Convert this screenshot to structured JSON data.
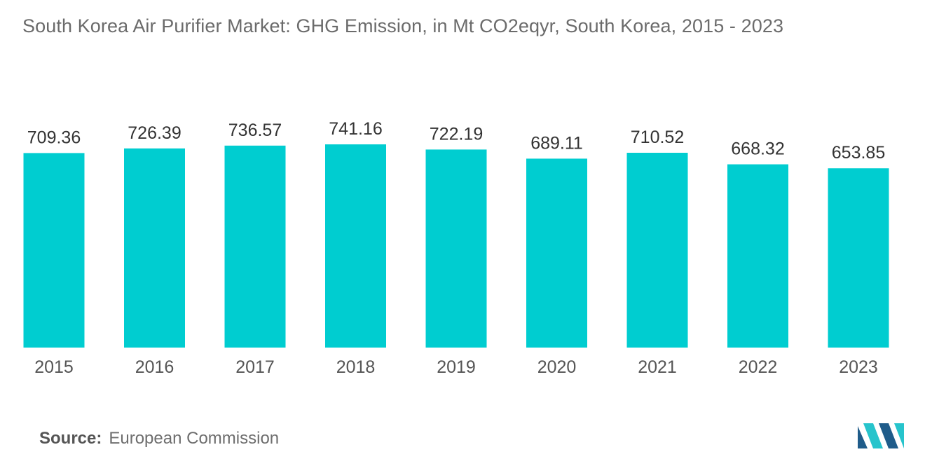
{
  "colors": {
    "bar": "#00cdd0",
    "label": "#333333",
    "tick": "#555555",
    "title": "#6b6b6b",
    "logo_dark": "#1f5c8a",
    "logo_light": "#27c4cc"
  },
  "source": {
    "label": "Source:",
    "text": "European Commission"
  },
  "logo": {
    "icon": "mordor-intelligence-logo-icon"
  },
  "chart_data": {
    "type": "bar",
    "title": "South Korea Air Purifier Market: GHG Emission, in Mt CO2eqyr, South Korea, 2015 - 2023",
    "xlabel": "",
    "ylabel": "",
    "categories": [
      "2015",
      "2016",
      "2017",
      "2018",
      "2019",
      "2020",
      "2021",
      "2022",
      "2023"
    ],
    "values": [
      709.36,
      726.39,
      736.57,
      741.16,
      722.19,
      689.11,
      710.52,
      668.32,
      653.85
    ],
    "data_labels": [
      "709.36",
      "726.39",
      "736.57",
      "741.16",
      "722.19",
      "689.11",
      "710.52",
      "668.32",
      "653.85"
    ],
    "grid": false,
    "legend": "none"
  }
}
